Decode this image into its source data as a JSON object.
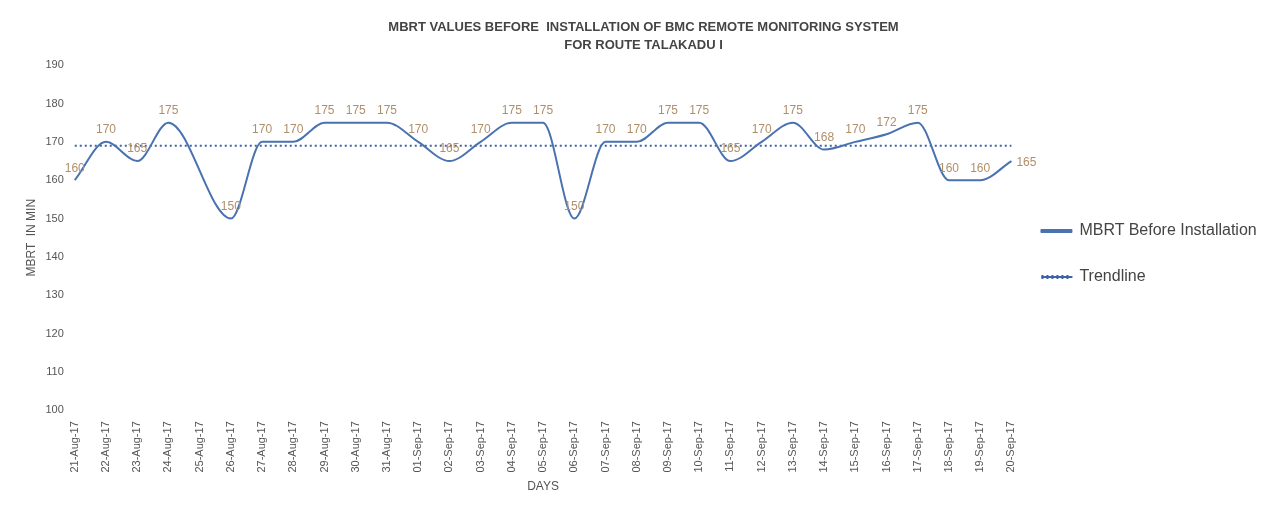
{
  "chart_data": {
    "type": "line",
    "title": "MBRT VALUES BEFORE  INSTALLATION OF BMC REMOTE MONITORING SYSTEM",
    "subtitle": "FOR ROUTE TALAKADU I",
    "xlabel": "DAYS",
    "ylabel": "MBRT  IN MIN",
    "categories": [
      "21-Aug-17",
      "22-Aug-17",
      "23-Aug-17",
      "24-Aug-17",
      "25-Aug-17",
      "26-Aug-17",
      "27-Aug-17",
      "28-Aug-17",
      "29-Aug-17",
      "30-Aug-17",
      "31-Aug-17",
      "01-Sep-17",
      "02-Sep-17",
      "03-Sep-17",
      "04-Sep-17",
      "05-Sep-17",
      "06-Sep-17",
      "07-Sep-17",
      "08-Sep-17",
      "09-Sep-17",
      "10-Sep-17",
      "11-Sep-17",
      "12-Sep-17",
      "13-Sep-17",
      "14-Sep-17",
      "15-Sep-17",
      "16-Sep-17",
      "17-Sep-17",
      "18-Sep-17",
      "19-Sep-17",
      "20-Sep-17"
    ],
    "series": [
      {
        "name": "MBRT Before Installation",
        "color": "#4a72b0",
        "line_style": "solid",
        "values": [
          160,
          170,
          165,
          175,
          null,
          150,
          170,
          170,
          175,
          175,
          175,
          170,
          165,
          170,
          175,
          175,
          150,
          170,
          170,
          175,
          175,
          165,
          170,
          175,
          168,
          170,
          172,
          175,
          160,
          160,
          165
        ],
        "value_labels": [
          "160",
          "170",
          "165",
          "175",
          null,
          "150",
          "170",
          "170",
          "175",
          "175",
          "175",
          "170",
          "165",
          "170",
          "175",
          "175",
          "150",
          "170",
          "170",
          "175",
          "175",
          "165",
          "170",
          "175",
          "168",
          "170",
          "172",
          "175",
          "160",
          "160",
          "165"
        ]
      },
      {
        "name": "Trendline",
        "type": "line",
        "color": "#3d63a8",
        "line_style": "dotted",
        "x": [
          "21-Aug-17",
          "20-Sep-17"
        ],
        "values": [
          169,
          169
        ]
      }
    ],
    "ylim": [
      100,
      190
    ],
    "yticks": [
      100,
      110,
      120,
      130,
      140,
      150,
      160,
      170,
      180,
      190
    ],
    "grid": false,
    "legend": "right",
    "marker": "none"
  }
}
